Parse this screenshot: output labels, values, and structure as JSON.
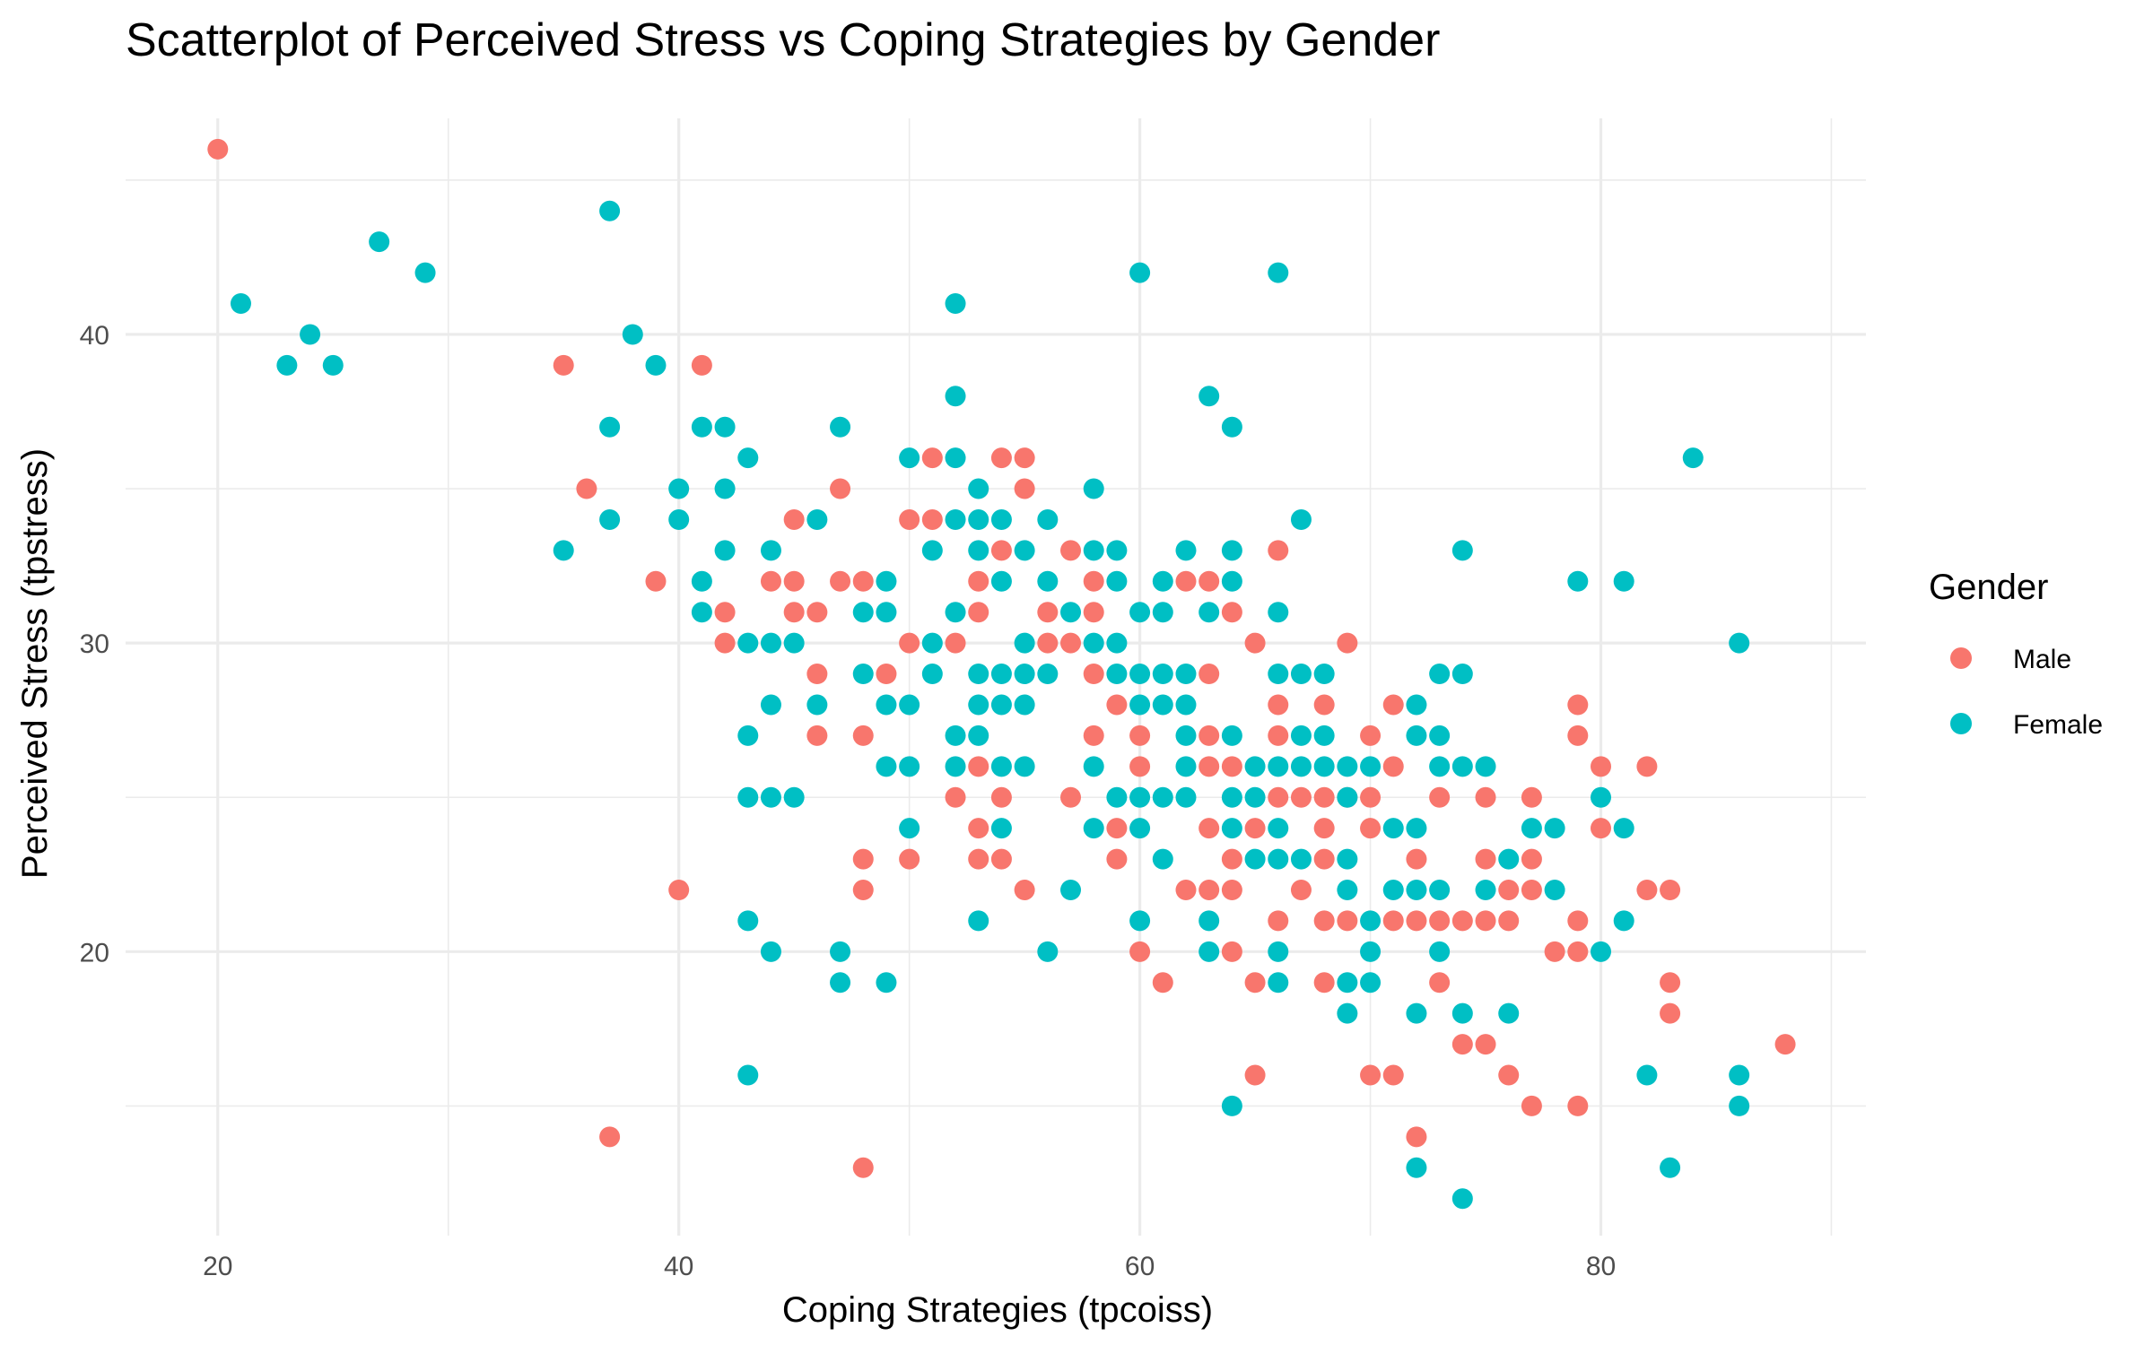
{
  "chart_data": {
    "type": "scatter",
    "title": "Scatterplot of Perceived Stress vs Coping Strategies by Gender",
    "xlabel": "Coping Strategies (tpcoiss)",
    "ylabel": "Perceived Stress (tpstress)",
    "xlim": [
      16,
      91.5
    ],
    "ylim": [
      10.8,
      47.0
    ],
    "x_ticks": [
      20,
      40,
      60,
      80
    ],
    "x_tick_labels": [
      "20",
      "40",
      "60",
      "80"
    ],
    "x_minor_ticks": [
      30,
      50,
      70,
      90
    ],
    "y_ticks": [
      20,
      30,
      40
    ],
    "y_tick_labels": [
      "20",
      "30",
      "40"
    ],
    "y_minor_ticks": [
      15,
      25,
      35,
      45
    ],
    "grid": true,
    "legend": {
      "title": "Gender",
      "position": "right"
    },
    "series": [
      {
        "name": "Male",
        "color": "#F8766D",
        "points": [
          [
            20,
            46
          ],
          [
            35,
            39
          ],
          [
            36,
            35
          ],
          [
            37,
            14
          ],
          [
            39,
            32
          ],
          [
            40,
            22
          ],
          [
            41,
            39
          ],
          [
            42,
            31
          ],
          [
            42,
            30
          ],
          [
            44,
            32
          ],
          [
            45,
            34
          ],
          [
            45,
            32
          ],
          [
            45,
            31
          ],
          [
            46,
            31
          ],
          [
            46,
            29
          ],
          [
            46,
            27
          ],
          [
            47,
            35
          ],
          [
            47,
            32
          ],
          [
            48,
            32
          ],
          [
            48,
            27
          ],
          [
            48,
            23
          ],
          [
            48,
            22
          ],
          [
            48,
            13
          ],
          [
            49,
            29
          ],
          [
            50,
            34
          ],
          [
            50,
            30
          ],
          [
            50,
            23
          ],
          [
            51,
            36
          ],
          [
            51,
            34
          ],
          [
            52,
            30
          ],
          [
            52,
            25
          ],
          [
            53,
            32
          ],
          [
            53,
            31
          ],
          [
            53,
            26
          ],
          [
            53,
            24
          ],
          [
            53,
            23
          ],
          [
            54,
            36
          ],
          [
            54,
            33
          ],
          [
            54,
            25
          ],
          [
            54,
            23
          ],
          [
            55,
            36
          ],
          [
            55,
            35
          ],
          [
            55,
            22
          ],
          [
            56,
            31
          ],
          [
            56,
            30
          ],
          [
            57,
            33
          ],
          [
            57,
            30
          ],
          [
            57,
            25
          ],
          [
            58,
            32
          ],
          [
            58,
            31
          ],
          [
            58,
            29
          ],
          [
            58,
            27
          ],
          [
            59,
            28
          ],
          [
            59,
            24
          ],
          [
            59,
            23
          ],
          [
            60,
            27
          ],
          [
            60,
            26
          ],
          [
            60,
            20
          ],
          [
            61,
            19
          ],
          [
            62,
            32
          ],
          [
            62,
            22
          ],
          [
            63,
            32
          ],
          [
            63,
            29
          ],
          [
            63,
            27
          ],
          [
            63,
            26
          ],
          [
            63,
            24
          ],
          [
            63,
            22
          ],
          [
            64,
            31
          ],
          [
            64,
            26
          ],
          [
            64,
            23
          ],
          [
            64,
            22
          ],
          [
            64,
            20
          ],
          [
            65,
            30
          ],
          [
            65,
            24
          ],
          [
            65,
            19
          ],
          [
            65,
            16
          ],
          [
            66,
            33
          ],
          [
            66,
            28
          ],
          [
            66,
            27
          ],
          [
            66,
            25
          ],
          [
            66,
            21
          ],
          [
            67,
            25
          ],
          [
            67,
            22
          ],
          [
            68,
            28
          ],
          [
            68,
            25
          ],
          [
            68,
            24
          ],
          [
            68,
            23
          ],
          [
            68,
            21
          ],
          [
            68,
            19
          ],
          [
            69,
            30
          ],
          [
            69,
            25
          ],
          [
            69,
            21
          ],
          [
            70,
            27
          ],
          [
            70,
            25
          ],
          [
            70,
            24
          ],
          [
            70,
            16
          ],
          [
            71,
            28
          ],
          [
            71,
            26
          ],
          [
            71,
            21
          ],
          [
            71,
            16
          ],
          [
            72,
            23
          ],
          [
            72,
            21
          ],
          [
            72,
            14
          ],
          [
            73,
            25
          ],
          [
            73,
            21
          ],
          [
            73,
            19
          ],
          [
            74,
            21
          ],
          [
            74,
            17
          ],
          [
            75,
            25
          ],
          [
            75,
            23
          ],
          [
            75,
            21
          ],
          [
            75,
            17
          ],
          [
            76,
            22
          ],
          [
            76,
            21
          ],
          [
            76,
            16
          ],
          [
            77,
            25
          ],
          [
            77,
            23
          ],
          [
            77,
            22
          ],
          [
            77,
            15
          ],
          [
            78,
            20
          ],
          [
            79,
            28
          ],
          [
            79,
            27
          ],
          [
            79,
            21
          ],
          [
            79,
            20
          ],
          [
            79,
            15
          ],
          [
            80,
            26
          ],
          [
            80,
            24
          ],
          [
            82,
            26
          ],
          [
            82,
            22
          ],
          [
            83,
            22
          ],
          [
            83,
            19
          ],
          [
            83,
            18
          ],
          [
            88,
            17
          ]
        ]
      },
      {
        "name": "Female",
        "color": "#00BFC4",
        "points": [
          [
            21,
            41
          ],
          [
            23,
            39
          ],
          [
            24,
            40
          ],
          [
            25,
            39
          ],
          [
            27,
            43
          ],
          [
            29,
            42
          ],
          [
            35,
            33
          ],
          [
            37,
            44
          ],
          [
            37,
            37
          ],
          [
            37,
            34
          ],
          [
            38,
            40
          ],
          [
            39,
            39
          ],
          [
            40,
            35
          ],
          [
            40,
            34
          ],
          [
            41,
            37
          ],
          [
            41,
            32
          ],
          [
            41,
            31
          ],
          [
            42,
            37
          ],
          [
            42,
            35
          ],
          [
            42,
            33
          ],
          [
            43,
            36
          ],
          [
            43,
            30
          ],
          [
            43,
            27
          ],
          [
            43,
            25
          ],
          [
            43,
            21
          ],
          [
            43,
            16
          ],
          [
            44,
            33
          ],
          [
            44,
            30
          ],
          [
            44,
            28
          ],
          [
            44,
            25
          ],
          [
            44,
            20
          ],
          [
            45,
            30
          ],
          [
            45,
            25
          ],
          [
            46,
            34
          ],
          [
            46,
            28
          ],
          [
            47,
            37
          ],
          [
            47,
            20
          ],
          [
            47,
            19
          ],
          [
            48,
            31
          ],
          [
            48,
            29
          ],
          [
            49,
            32
          ],
          [
            49,
            31
          ],
          [
            49,
            28
          ],
          [
            49,
            26
          ],
          [
            49,
            19
          ],
          [
            50,
            36
          ],
          [
            50,
            28
          ],
          [
            50,
            26
          ],
          [
            50,
            24
          ],
          [
            51,
            30
          ],
          [
            51,
            29
          ],
          [
            51,
            33
          ],
          [
            52,
            41
          ],
          [
            52,
            38
          ],
          [
            52,
            36
          ],
          [
            52,
            34
          ],
          [
            52,
            31
          ],
          [
            52,
            27
          ],
          [
            52,
            26
          ],
          [
            53,
            35
          ],
          [
            53,
            34
          ],
          [
            53,
            33
          ],
          [
            53,
            29
          ],
          [
            53,
            28
          ],
          [
            53,
            27
          ],
          [
            53,
            21
          ],
          [
            54,
            34
          ],
          [
            54,
            32
          ],
          [
            54,
            29
          ],
          [
            54,
            28
          ],
          [
            54,
            26
          ],
          [
            54,
            24
          ],
          [
            55,
            33
          ],
          [
            55,
            30
          ],
          [
            55,
            29
          ],
          [
            55,
            28
          ],
          [
            55,
            26
          ],
          [
            56,
            34
          ],
          [
            56,
            32
          ],
          [
            56,
            29
          ],
          [
            56,
            20
          ],
          [
            57,
            31
          ],
          [
            57,
            22
          ],
          [
            58,
            35
          ],
          [
            58,
            33
          ],
          [
            58,
            30
          ],
          [
            58,
            26
          ],
          [
            58,
            24
          ],
          [
            59,
            33
          ],
          [
            59,
            32
          ],
          [
            59,
            30
          ],
          [
            59,
            29
          ],
          [
            59,
            25
          ],
          [
            60,
            42
          ],
          [
            60,
            31
          ],
          [
            60,
            29
          ],
          [
            60,
            28
          ],
          [
            60,
            25
          ],
          [
            60,
            24
          ],
          [
            60,
            21
          ],
          [
            61,
            32
          ],
          [
            61,
            31
          ],
          [
            61,
            29
          ],
          [
            61,
            28
          ],
          [
            61,
            25
          ],
          [
            61,
            23
          ],
          [
            62,
            33
          ],
          [
            62,
            29
          ],
          [
            62,
            28
          ],
          [
            62,
            27
          ],
          [
            62,
            26
          ],
          [
            62,
            25
          ],
          [
            63,
            38
          ],
          [
            63,
            31
          ],
          [
            63,
            21
          ],
          [
            63,
            20
          ],
          [
            64,
            37
          ],
          [
            64,
            33
          ],
          [
            64,
            32
          ],
          [
            64,
            27
          ],
          [
            64,
            25
          ],
          [
            64,
            24
          ],
          [
            64,
            15
          ],
          [
            65,
            26
          ],
          [
            65,
            25
          ],
          [
            65,
            23
          ],
          [
            66,
            42
          ],
          [
            66,
            31
          ],
          [
            66,
            29
          ],
          [
            66,
            26
          ],
          [
            66,
            24
          ],
          [
            66,
            23
          ],
          [
            66,
            20
          ],
          [
            66,
            19
          ],
          [
            67,
            34
          ],
          [
            67,
            29
          ],
          [
            67,
            27
          ],
          [
            67,
            26
          ],
          [
            67,
            23
          ],
          [
            68,
            29
          ],
          [
            68,
            27
          ],
          [
            68,
            26
          ],
          [
            69,
            26
          ],
          [
            69,
            25
          ],
          [
            69,
            23
          ],
          [
            69,
            22
          ],
          [
            69,
            19
          ],
          [
            69,
            18
          ],
          [
            70,
            26
          ],
          [
            70,
            21
          ],
          [
            70,
            20
          ],
          [
            70,
            19
          ],
          [
            71,
            24
          ],
          [
            71,
            22
          ],
          [
            72,
            28
          ],
          [
            72,
            27
          ],
          [
            72,
            24
          ],
          [
            72,
            22
          ],
          [
            72,
            18
          ],
          [
            72,
            13
          ],
          [
            73,
            29
          ],
          [
            73,
            27
          ],
          [
            73,
            26
          ],
          [
            73,
            22
          ],
          [
            73,
            20
          ],
          [
            74,
            33
          ],
          [
            74,
            29
          ],
          [
            74,
            26
          ],
          [
            74,
            18
          ],
          [
            74,
            12
          ],
          [
            75,
            26
          ],
          [
            75,
            22
          ],
          [
            76,
            23
          ],
          [
            76,
            18
          ],
          [
            77,
            24
          ],
          [
            78,
            24
          ],
          [
            78,
            22
          ],
          [
            79,
            32
          ],
          [
            80,
            25
          ],
          [
            80,
            20
          ],
          [
            81,
            32
          ],
          [
            81,
            24
          ],
          [
            81,
            21
          ],
          [
            82,
            16
          ],
          [
            83,
            13
          ],
          [
            84,
            36
          ],
          [
            86,
            30
          ],
          [
            86,
            16
          ],
          [
            86,
            15
          ]
        ]
      }
    ]
  }
}
